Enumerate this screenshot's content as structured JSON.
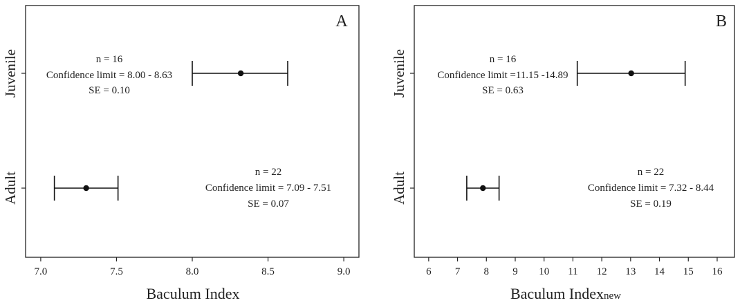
{
  "chart_data": [
    {
      "type": "errorbar",
      "panel_label": "A",
      "xlabel": "Baculum Index",
      "xlabel_sub": "",
      "ylabel": "",
      "xlim": [
        6.9,
        9.1
      ],
      "xticks": [
        7.0,
        7.5,
        8.0,
        8.5,
        9.0
      ],
      "xtick_labels": [
        "7.0",
        "7.5",
        "8.0",
        "8.5",
        "9.0"
      ],
      "categories": [
        "Juvenile",
        "Adult"
      ],
      "points": [
        {
          "group": "Juvenile",
          "mean": 8.32,
          "lower": 8.0,
          "upper": 8.63,
          "annotation": [
            "n = 16",
            "Confidence limit = 8.00 - 8.63",
            "SE = 0.10"
          ]
        },
        {
          "group": "Adult",
          "mean": 7.3,
          "lower": 7.09,
          "upper": 7.51,
          "annotation": [
            "n = 22",
            "Confidence limit = 7.09 - 7.51",
            "SE = 0.07"
          ]
        }
      ],
      "grid": false,
      "legend": "none"
    },
    {
      "type": "errorbar",
      "panel_label": "B",
      "xlabel": "Baculum Index",
      "xlabel_sub": "new",
      "ylabel": "",
      "xlim": [
        5.5,
        16.6
      ],
      "xticks": [
        6,
        7,
        8,
        9,
        10,
        11,
        12,
        13,
        14,
        15,
        16
      ],
      "xtick_labels": [
        "6",
        "7",
        "8",
        "9",
        "10",
        "11",
        "12",
        "13",
        "14",
        "15",
        "16"
      ],
      "categories": [
        "Juvenile",
        "Adult"
      ],
      "points": [
        {
          "group": "Juvenile",
          "mean": 13.02,
          "lower": 11.15,
          "upper": 14.89,
          "annotation": [
            "n = 16",
            "Confidence limit =11.15 -14.89",
            "SE = 0.63"
          ]
        },
        {
          "group": "Adult",
          "mean": 7.88,
          "lower": 7.32,
          "upper": 8.44,
          "annotation": [
            "n = 22",
            "Confidence limit = 7.32 - 8.44",
            "SE = 0.19"
          ]
        }
      ],
      "grid": false,
      "legend": "none"
    }
  ]
}
